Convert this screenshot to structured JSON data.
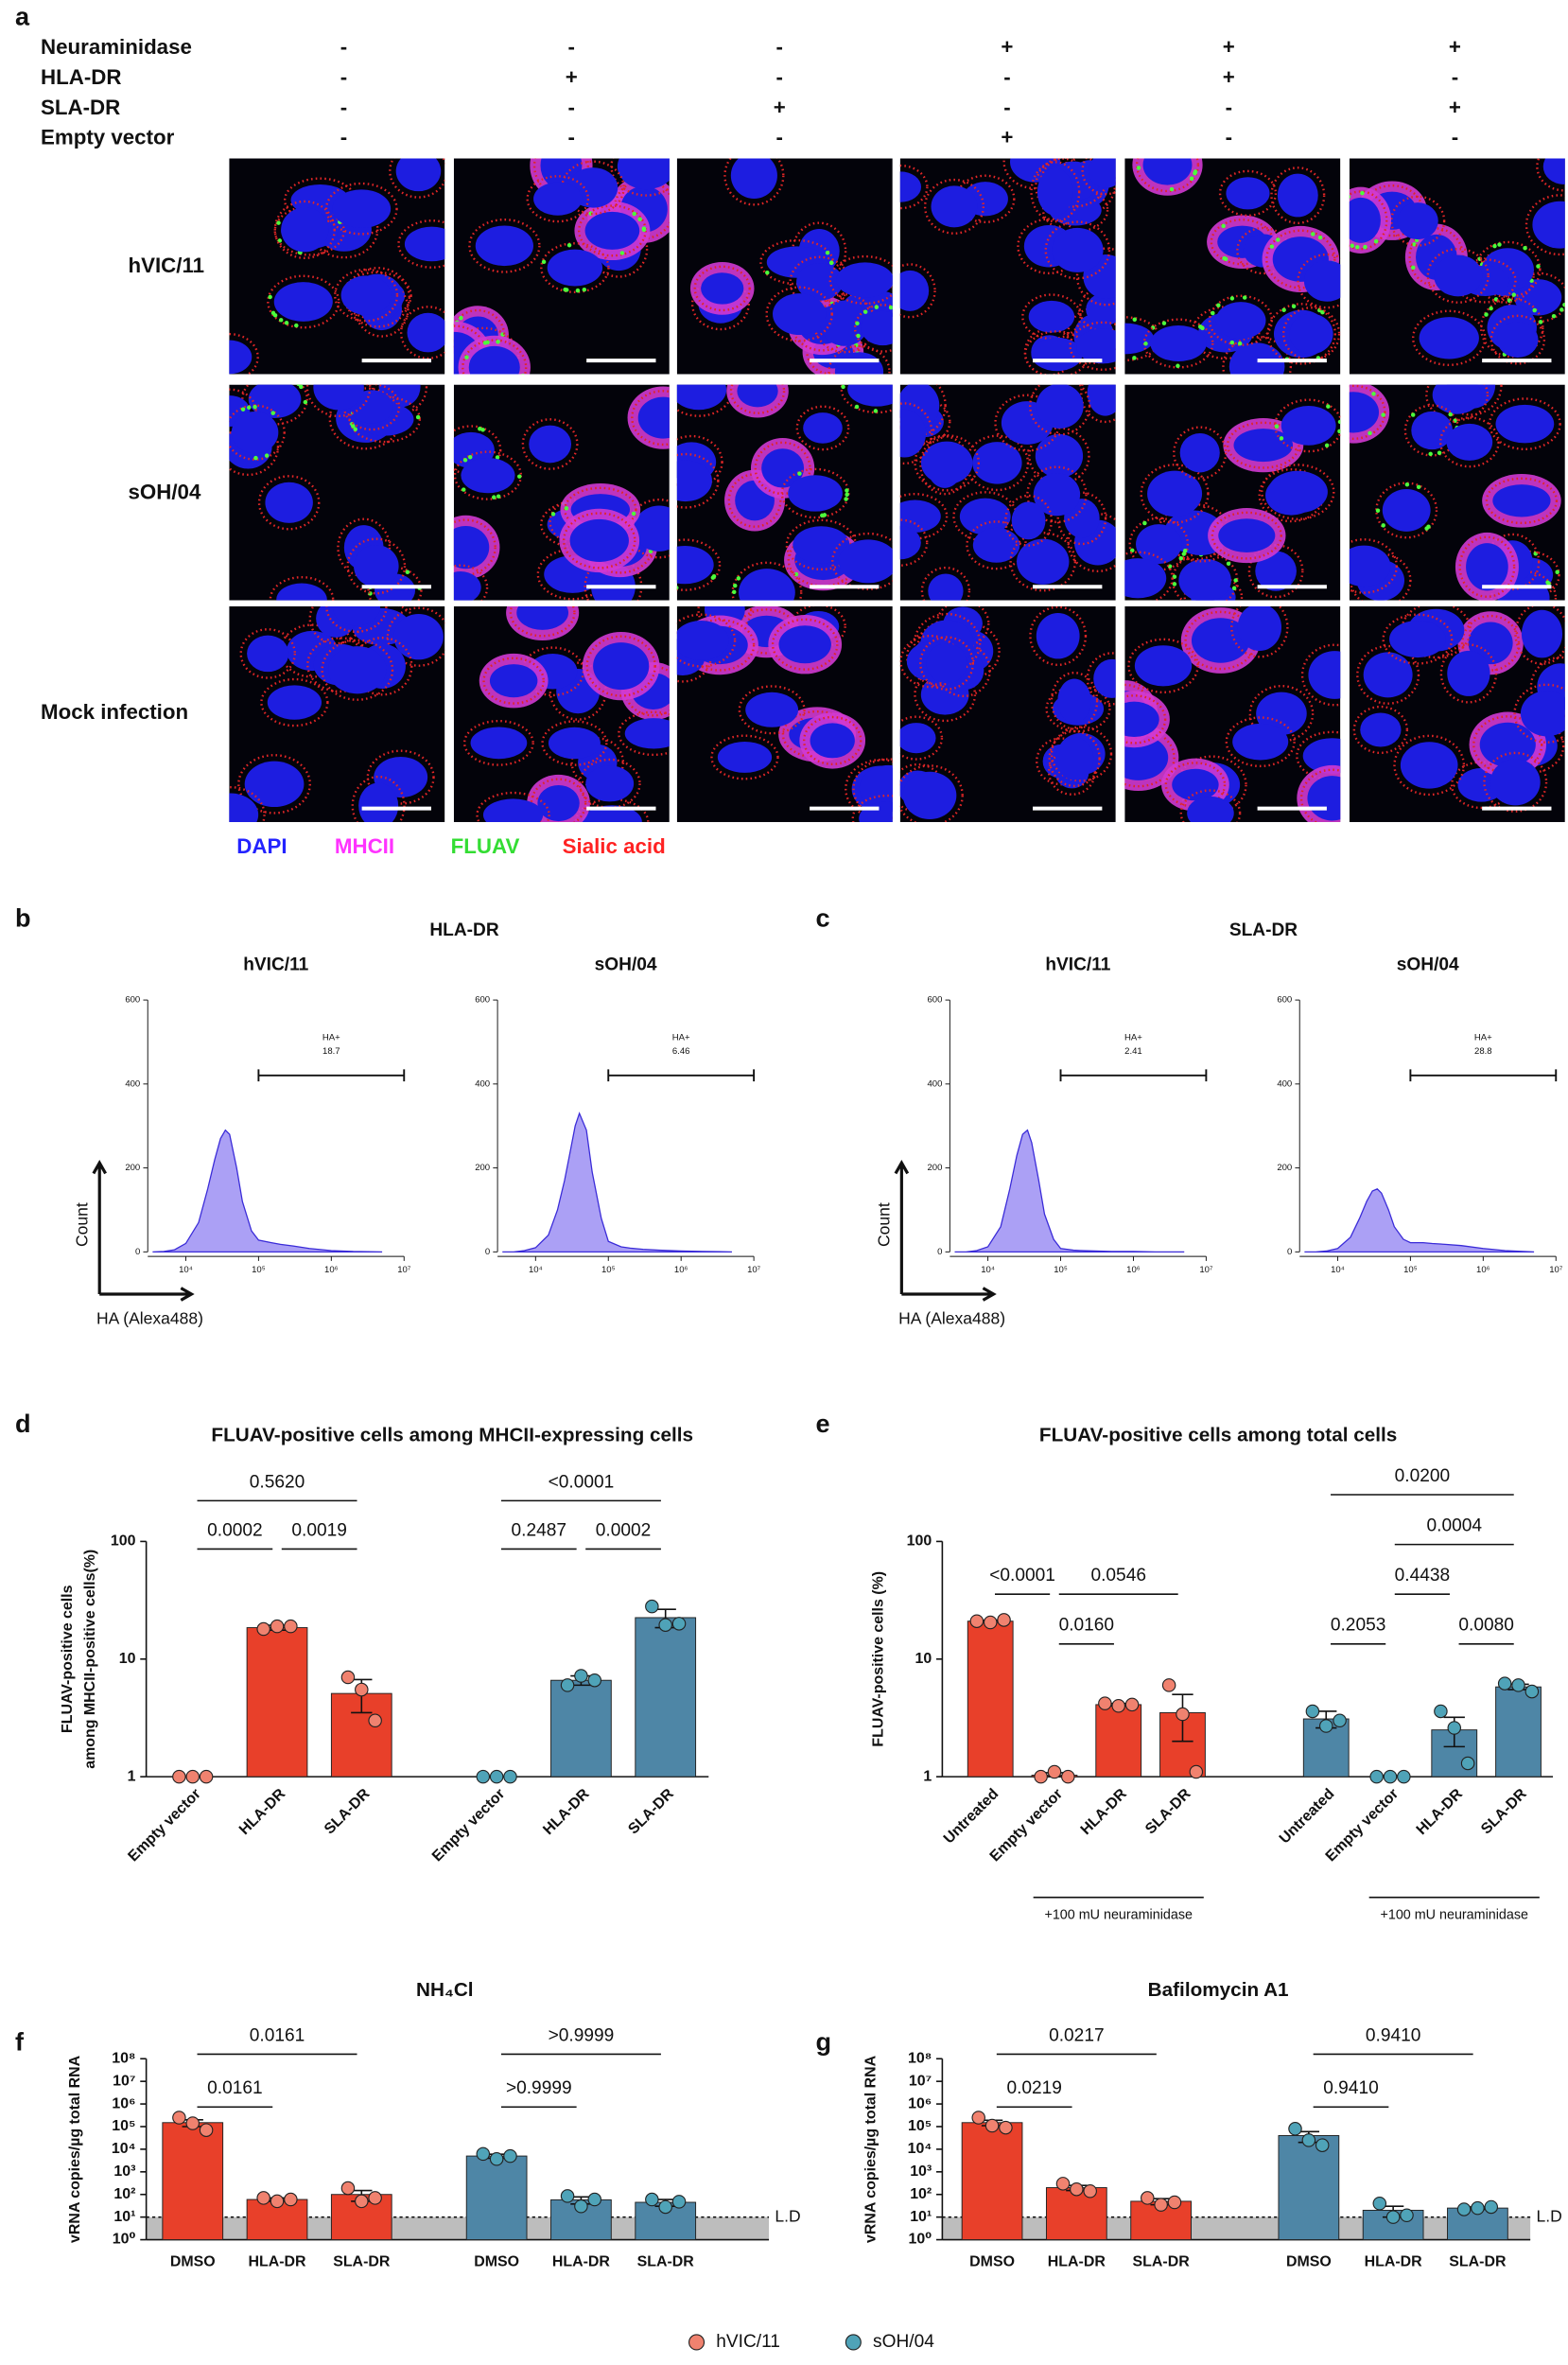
{
  "panel_a": {
    "letter": "a",
    "conditions": [
      {
        "name": "Neuraminidase",
        "signs": [
          "-",
          "-",
          "-",
          "+",
          "+",
          "+"
        ]
      },
      {
        "name": "HLA-DR",
        "signs": [
          "-",
          "+",
          "-",
          "-",
          "+",
          "-"
        ]
      },
      {
        "name": "SLA-DR",
        "signs": [
          "-",
          "-",
          "+",
          "-",
          "-",
          "+"
        ]
      },
      {
        "name": "Empty vector",
        "signs": [
          "-",
          "-",
          "-",
          "+",
          "-",
          "-"
        ]
      }
    ],
    "rows": [
      "hVIC/11",
      "sOH/04",
      "Mock infection"
    ],
    "stains": [
      {
        "name": "DAPI",
        "color": "#2323ff"
      },
      {
        "name": "MHCII",
        "color": "#ff33ff"
      },
      {
        "name": "FLUAV",
        "color": "#33dd33"
      },
      {
        "name": "Sialic acid",
        "color": "#ff2222"
      }
    ]
  },
  "panel_b": {
    "letter": "b",
    "title": "HLA-DR",
    "y_label": "Count",
    "x_label": "HA (Alexa488)"
  },
  "panel_c": {
    "letter": "c",
    "title": "SLA-DR",
    "y_label": "Count",
    "x_label": "HA (Alexa488)"
  },
  "chart_data": [
    {
      "type": "area",
      "title": "hVIC/11",
      "log_x": true,
      "xlim": [
        3000,
        10000000
      ],
      "ylim": [
        0,
        600
      ],
      "yticks": [
        0,
        200,
        400,
        600
      ],
      "xticks": [
        {
          "value": 10000,
          "label": "10⁴"
        },
        {
          "value": 100000,
          "label": "10⁵"
        },
        {
          "value": 1000000,
          "label": "10⁶"
        },
        {
          "value": 10000000,
          "label": "10⁷"
        }
      ],
      "x": [
        3500,
        5000,
        7000,
        10000,
        15000,
        20000,
        25000,
        30000,
        35000,
        40000,
        50000,
        60000,
        80000,
        100000,
        150000,
        200000,
        300000,
        500000,
        1000000,
        2000000,
        5000000
      ],
      "values": [
        0,
        1,
        5,
        20,
        70,
        150,
        220,
        270,
        290,
        280,
        200,
        120,
        50,
        28,
        22,
        18,
        14,
        8,
        3,
        1,
        0
      ],
      "color": "#8f80f2",
      "gate": {
        "label": "HA+",
        "value": 18.7,
        "range": [
          100000,
          10000000
        ]
      }
    },
    {
      "type": "area",
      "title": "sOH/04",
      "log_x": true,
      "xlim": [
        3000,
        10000000
      ],
      "ylim": [
        0,
        600
      ],
      "yticks": [
        0,
        200,
        400,
        600
      ],
      "xticks": [
        {
          "value": 10000,
          "label": "10⁴"
        },
        {
          "value": 100000,
          "label": "10⁵"
        },
        {
          "value": 1000000,
          "label": "10⁶"
        },
        {
          "value": 10000000,
          "label": "10⁷"
        }
      ],
      "x": [
        3500,
        5000,
        7000,
        10000,
        15000,
        20000,
        25000,
        30000,
        35000,
        40000,
        50000,
        60000,
        80000,
        100000,
        150000,
        200000,
        300000,
        500000,
        1000000,
        2000000,
        5000000
      ],
      "values": [
        0,
        0,
        3,
        10,
        40,
        100,
        170,
        240,
        300,
        330,
        290,
        190,
        80,
        25,
        12,
        9,
        6,
        4,
        2,
        1,
        0
      ],
      "color": "#8f80f2",
      "gate": {
        "label": "HA+",
        "value": 6.46,
        "range": [
          100000,
          10000000
        ]
      }
    },
    {
      "type": "area",
      "title": "hVIC/11",
      "log_x": true,
      "xlim": [
        3000,
        10000000
      ],
      "ylim": [
        0,
        600
      ],
      "yticks": [
        0,
        200,
        400,
        600
      ],
      "xticks": [
        {
          "value": 10000,
          "label": "10⁴"
        },
        {
          "value": 100000,
          "label": "10⁵"
        },
        {
          "value": 1000000,
          "label": "10⁶"
        },
        {
          "value": 10000000,
          "label": "10⁷"
        }
      ],
      "x": [
        3500,
        5000,
        7000,
        10000,
        15000,
        20000,
        25000,
        30000,
        35000,
        40000,
        50000,
        60000,
        80000,
        100000,
        150000,
        200000,
        300000,
        500000,
        1000000,
        2000000,
        5000000
      ],
      "values": [
        0,
        0,
        3,
        12,
        60,
        150,
        230,
        280,
        290,
        260,
        170,
        90,
        30,
        8,
        4,
        3,
        2,
        1,
        1,
        0,
        0
      ],
      "color": "#8f80f2",
      "gate": {
        "label": "HA+",
        "value": 2.41,
        "range": [
          100000,
          10000000
        ]
      }
    },
    {
      "type": "area",
      "title": "sOH/04",
      "log_x": true,
      "xlim": [
        3000,
        10000000
      ],
      "ylim": [
        0,
        600
      ],
      "yticks": [
        0,
        200,
        400,
        600
      ],
      "xticks": [
        {
          "value": 10000,
          "label": "10⁴"
        },
        {
          "value": 100000,
          "label": "10⁵"
        },
        {
          "value": 1000000,
          "label": "10⁶"
        },
        {
          "value": 10000000,
          "label": "10⁷"
        }
      ],
      "x": [
        3500,
        5000,
        7000,
        10000,
        15000,
        20000,
        25000,
        30000,
        35000,
        40000,
        50000,
        60000,
        80000,
        100000,
        150000,
        200000,
        300000,
        500000,
        1000000,
        2000000,
        5000000
      ],
      "values": [
        0,
        0,
        2,
        8,
        35,
        80,
        120,
        145,
        150,
        140,
        100,
        60,
        30,
        22,
        22,
        20,
        18,
        15,
        8,
        3,
        0
      ],
      "color": "#8f80f2",
      "gate": {
        "label": "HA+",
        "value": 28.8,
        "range": [
          100000,
          10000000
        ]
      }
    },
    {
      "type": "bar",
      "panel": "d",
      "title": "FLUAV-positive cells among MHCII-expressing cells",
      "ylabel": [
        "FLUAV-positive cells",
        "among MHCII-positive cells(%)"
      ],
      "log_y": true,
      "ylim": [
        1,
        100
      ],
      "yticks": [
        1,
        10,
        100
      ],
      "groups": [
        {
          "color": "#e8402a",
          "dot_color": "#f0826f",
          "categories": [
            "Empty vector",
            "HLA-DR",
            "SLA-DR"
          ],
          "values": [
            1,
            18.5,
            5.1
          ],
          "errors": [
            0,
            0.9,
            1.6
          ],
          "points": [
            [
              1,
              1,
              1
            ],
            [
              18,
              19,
              19
            ],
            [
              7,
              5.5,
              3
            ]
          ]
        },
        {
          "color": "#4e86a6",
          "dot_color": "#4fa3b8",
          "categories": [
            "Empty vector",
            "HLA-DR",
            "SLA-DR"
          ],
          "values": [
            1,
            6.6,
            22.5
          ],
          "errors": [
            0,
            0.6,
            4
          ],
          "points": [
            [
              1,
              1,
              1
            ],
            [
              6,
              7.2,
              6.6
            ],
            [
              28,
              19.5,
              20
            ]
          ]
        }
      ],
      "comparisons": [
        {
          "from": 0,
          "to": 1,
          "label": "0.0002"
        },
        {
          "from": 1,
          "to": 2,
          "label": "0.0019"
        },
        {
          "from": 0,
          "to": 2,
          "label": "0.5620"
        },
        {
          "from": 3,
          "to": 4,
          "label": "0.2487"
        },
        {
          "from": 4,
          "to": 5,
          "label": "0.0002"
        },
        {
          "from": 3,
          "to": 5,
          "label": "<0.0001"
        }
      ]
    },
    {
      "type": "bar",
      "panel": "e",
      "title": "FLUAV-positive cells among total cells",
      "ylabel": [
        "FLUAV-positive cells (%)"
      ],
      "log_y": true,
      "ylim": [
        1,
        100
      ],
      "yticks": [
        1,
        10,
        100
      ],
      "groups": [
        {
          "color": "#e8402a",
          "dot_color": "#f0826f",
          "categories": [
            "Untreated",
            "Empty vector",
            "HLA-DR",
            "SLA-DR"
          ],
          "values": [
            21,
            1.03,
            4.1,
            3.5
          ],
          "errors": [
            0.4,
            0.05,
            0.1,
            1.5
          ],
          "points": [
            [
              21,
              20.5,
              21.5
            ],
            [
              1,
              1.1,
              1
            ],
            [
              4.2,
              4,
              4.1
            ],
            [
              6,
              3.4,
              1.1
            ]
          ]
        },
        {
          "color": "#4e86a6",
          "dot_color": "#4fa3b8",
          "categories": [
            "Untreated",
            "Empty vector",
            "HLA-DR",
            "SLA-DR"
          ],
          "values": [
            3.1,
            1,
            2.5,
            5.8
          ],
          "errors": [
            0.5,
            0.02,
            0.7,
            0.3
          ],
          "points": [
            [
              3.6,
              2.7,
              3
            ],
            [
              1,
              1,
              1
            ],
            [
              3.6,
              2.6,
              1.3
            ],
            [
              6.2,
              6,
              5.3
            ]
          ]
        }
      ],
      "comparisons": [
        {
          "from": 0,
          "to": 1,
          "label": "<0.0001"
        },
        {
          "from": 1,
          "to": 2,
          "label": "0.0160"
        },
        {
          "from": 1,
          "to": 3,
          "label": "0.0546"
        },
        {
          "from": 4,
          "to": 5,
          "label": "0.2053"
        },
        {
          "from": 6,
          "to": 7,
          "label": "0.0080"
        },
        {
          "from": 5,
          "to": 6,
          "label": "0.4438"
        },
        {
          "from": 5,
          "to": 7,
          "label": "0.0004"
        },
        {
          "from": 4,
          "to": 7,
          "label": "0.0200"
        }
      ],
      "group_labels": [
        {
          "label": "+100 mU neuraminidase",
          "from": 1,
          "to": 3
        },
        {
          "label": "+100 mU neuraminidase",
          "from": 5,
          "to": 7
        }
      ]
    },
    {
      "type": "bar",
      "panel": "f",
      "title": "NH₄Cl",
      "ylabel": [
        "vRNA copies/µg total RNA"
      ],
      "log_y": true,
      "ylim": [
        1,
        100000000
      ],
      "yticks": [
        {
          "value": 1,
          "label": "10⁰"
        },
        {
          "value": 10,
          "label": "10¹"
        },
        {
          "value": 100,
          "label": "10²"
        },
        {
          "value": 1000,
          "label": "10³"
        },
        {
          "value": 10000,
          "label": "10⁴"
        },
        {
          "value": 100000,
          "label": "10⁵"
        },
        {
          "value": 1000000,
          "label": "10⁶"
        },
        {
          "value": 10000000,
          "label": "10⁷"
        },
        {
          "value": 100000000,
          "label": "10⁸"
        }
      ],
      "groups": [
        {
          "color": "#e8402a",
          "dot_color": "#f0826f",
          "categories": [
            "DMSO",
            "HLA-DR",
            "SLA-DR"
          ],
          "values": [
            150000,
            60,
            100
          ],
          "errors": [
            50000,
            10,
            50
          ],
          "points": [
            [
              250000,
              140000,
              70000
            ],
            [
              70,
              50,
              60
            ],
            [
              190,
              50,
              70
            ]
          ]
        },
        {
          "color": "#4e86a6",
          "dot_color": "#4fa3b8",
          "categories": [
            "DMSO",
            "HLA-DR",
            "SLA-DR"
          ],
          "values": [
            5000,
            58,
            45
          ],
          "errors": [
            1000,
            20,
            15
          ],
          "points": [
            [
              6200,
              3700,
              5000
            ],
            [
              85,
              30,
              60
            ],
            [
              60,
              28,
              48
            ]
          ]
        }
      ],
      "comparisons": [
        {
          "from": 0,
          "to": 1,
          "label": "0.0161"
        },
        {
          "from": 0,
          "to": 2,
          "label": "0.0161"
        },
        {
          "from": 3,
          "to": 4,
          "label": ">0.9999"
        },
        {
          "from": 3,
          "to": 5,
          "label": ">0.9999"
        }
      ],
      "ld": {
        "value": 10,
        "label": "L.D"
      }
    },
    {
      "type": "bar",
      "panel": "g",
      "title": "Bafilomycin A1",
      "ylabel": [
        "vRNA copies/µg total RNA"
      ],
      "log_y": true,
      "ylim": [
        1,
        100000000
      ],
      "yticks": [
        {
          "value": 1,
          "label": "10⁰"
        },
        {
          "value": 10,
          "label": "10¹"
        },
        {
          "value": 100,
          "label": "10²"
        },
        {
          "value": 1000,
          "label": "10³"
        },
        {
          "value": 10000,
          "label": "10⁴"
        },
        {
          "value": 100000,
          "label": "10⁵"
        },
        {
          "value": 1000000,
          "label": "10⁶"
        },
        {
          "value": 10000000,
          "label": "10⁷"
        },
        {
          "value": 100000000,
          "label": "10⁸"
        }
      ],
      "groups": [
        {
          "color": "#e8402a",
          "dot_color": "#f0826f",
          "categories": [
            "DMSO",
            "HLA-DR",
            "SLA-DR"
          ],
          "values": [
            150000,
            200,
            50
          ],
          "errors": [
            40000,
            50,
            15
          ],
          "points": [
            [
              250000,
              110000,
              90000
            ],
            [
              300,
              170,
              140
            ],
            [
              70,
              35,
              45
            ]
          ]
        },
        {
          "color": "#4e86a6",
          "dot_color": "#4fa3b8",
          "categories": [
            "DMSO",
            "HLA-DR",
            "SLA-DR"
          ],
          "values": [
            40000,
            20,
            25
          ],
          "errors": [
            20000,
            10,
            3
          ],
          "points": [
            [
              80000,
              25000,
              15000
            ],
            [
              40,
              10,
              12
            ],
            [
              22,
              25,
              28
            ]
          ]
        }
      ],
      "comparisons": [
        {
          "from": 0,
          "to": 1,
          "label": "0.0219"
        },
        {
          "from": 0,
          "to": 2,
          "label": "0.0217"
        },
        {
          "from": 3,
          "to": 4,
          "label": "0.9410"
        },
        {
          "from": 3,
          "to": 5,
          "label": "0.9410"
        }
      ],
      "ld": {
        "value": 10,
        "label": "L.D"
      }
    }
  ],
  "legend": [
    {
      "name": "hVIC/11",
      "color": "#f0826f"
    },
    {
      "name": "sOH/04",
      "color": "#4fa3b8"
    }
  ]
}
